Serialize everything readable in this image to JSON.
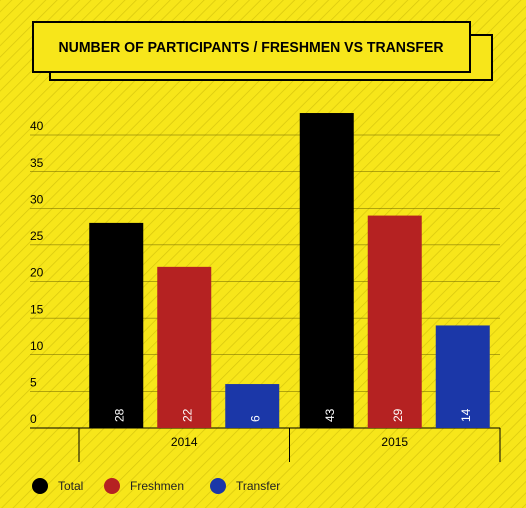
{
  "chart_data": {
    "type": "bar",
    "title": "NUMBER OF PARTICIPANTS / FRESHMEN VS TRANSFER",
    "categories": [
      "2014",
      "2015"
    ],
    "series": [
      {
        "name": "Total",
        "color": "#000000",
        "values": [
          28,
          43
        ]
      },
      {
        "name": "Freshmen",
        "color": "#b52222",
        "values": [
          22,
          29
        ]
      },
      {
        "name": "Transfer",
        "color": "#1b37a8",
        "values": [
          6,
          14
        ]
      }
    ],
    "ylim": [
      0,
      45
    ],
    "yticks": [
      0,
      5,
      10,
      15,
      20,
      25,
      30,
      35,
      40
    ],
    "grid": true,
    "legend": "bottom"
  }
}
